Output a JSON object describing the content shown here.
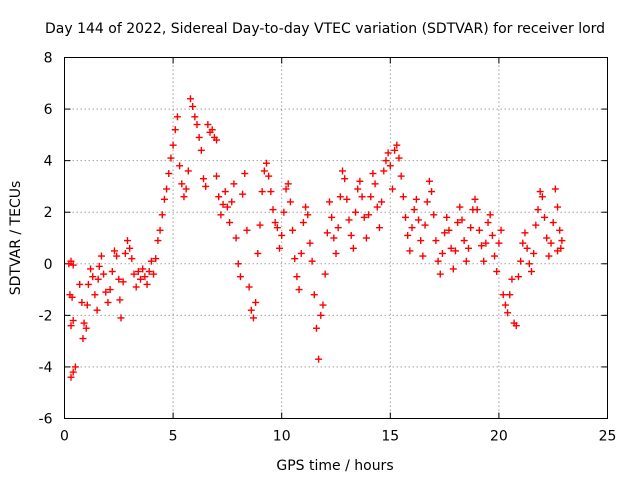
{
  "chart_data": {
    "type": "scatter",
    "title": "Day 144 of 2022, Sidereal Day-to-day VTEC variation (SDTVAR) for receiver lord",
    "xlabel": "GPS time / hours",
    "ylabel": "SDTVAR / TECUs",
    "xlim": [
      0,
      25
    ],
    "ylim": [
      -6,
      8
    ],
    "xticks": [
      0,
      5,
      10,
      15,
      20,
      25
    ],
    "yticks": [
      -6,
      -4,
      -2,
      0,
      2,
      4,
      6,
      8
    ],
    "grid": true,
    "marker": "+",
    "color": "#ff0000",
    "series": [
      {
        "name": "SDTVAR",
        "points": [
          [
            0.2,
            0.0
          ],
          [
            0.3,
            0.1
          ],
          [
            0.4,
            -0.05
          ],
          [
            0.25,
            -1.2
          ],
          [
            0.35,
            -1.3
          ],
          [
            0.3,
            -2.4
          ],
          [
            0.4,
            -2.2
          ],
          [
            0.3,
            -4.4
          ],
          [
            0.4,
            -4.2
          ],
          [
            0.5,
            -4.0
          ],
          [
            0.7,
            -0.8
          ],
          [
            0.8,
            -1.5
          ],
          [
            0.9,
            -2.3
          ],
          [
            0.85,
            -2.9
          ],
          [
            1.0,
            -2.5
          ],
          [
            1.05,
            -1.6
          ],
          [
            1.1,
            -0.8
          ],
          [
            1.2,
            -0.2
          ],
          [
            1.3,
            -0.5
          ],
          [
            1.4,
            -1.2
          ],
          [
            1.5,
            -1.8
          ],
          [
            1.55,
            -0.6
          ],
          [
            1.6,
            -0.1
          ],
          [
            1.7,
            0.3
          ],
          [
            1.8,
            -0.4
          ],
          [
            1.9,
            -1.1
          ],
          [
            2.0,
            -1.5
          ],
          [
            2.1,
            -1.0
          ],
          [
            2.2,
            -0.3
          ],
          [
            2.3,
            0.5
          ],
          [
            2.4,
            0.3
          ],
          [
            2.5,
            -0.6
          ],
          [
            2.55,
            -1.4
          ],
          [
            2.6,
            -2.1
          ],
          [
            2.7,
            -0.7
          ],
          [
            2.8,
            0.4
          ],
          [
            2.9,
            0.9
          ],
          [
            3.0,
            0.6
          ],
          [
            3.1,
            0.2
          ],
          [
            3.2,
            -0.4
          ],
          [
            3.3,
            -0.9
          ],
          [
            3.4,
            -0.3
          ],
          [
            3.5,
            -0.6
          ],
          [
            3.6,
            -0.2
          ],
          [
            3.7,
            -0.5
          ],
          [
            3.8,
            -0.8
          ],
          [
            3.9,
            -0.3
          ],
          [
            4.0,
            0.1
          ],
          [
            4.1,
            -0.4
          ],
          [
            4.2,
            0.2
          ],
          [
            4.3,
            0.9
          ],
          [
            4.4,
            1.3
          ],
          [
            4.5,
            1.9
          ],
          [
            4.6,
            2.5
          ],
          [
            4.7,
            2.9
          ],
          [
            4.8,
            3.5
          ],
          [
            4.9,
            4.1
          ],
          [
            5.0,
            4.6
          ],
          [
            5.1,
            5.2
          ],
          [
            5.2,
            5.7
          ],
          [
            5.3,
            3.8
          ],
          [
            5.4,
            3.1
          ],
          [
            5.5,
            2.6
          ],
          [
            5.6,
            2.9
          ],
          [
            5.7,
            3.6
          ],
          [
            5.8,
            6.4
          ],
          [
            5.9,
            6.1
          ],
          [
            6.0,
            5.7
          ],
          [
            6.1,
            5.4
          ],
          [
            6.2,
            4.9
          ],
          [
            6.3,
            4.4
          ],
          [
            6.4,
            3.3
          ],
          [
            6.5,
            3.0
          ],
          [
            6.6,
            5.4
          ],
          [
            6.7,
            5.1
          ],
          [
            6.8,
            5.2
          ],
          [
            6.9,
            4.9
          ],
          [
            7.0,
            4.8
          ],
          [
            7.0,
            3.4
          ],
          [
            7.1,
            2.6
          ],
          [
            7.2,
            1.9
          ],
          [
            7.3,
            2.3
          ],
          [
            7.4,
            2.8
          ],
          [
            7.5,
            2.2
          ],
          [
            7.6,
            1.6
          ],
          [
            7.7,
            2.4
          ],
          [
            7.8,
            3.1
          ],
          [
            7.9,
            1.0
          ],
          [
            8.0,
            0.0
          ],
          [
            8.1,
            -0.5
          ],
          [
            8.2,
            2.7
          ],
          [
            8.3,
            3.5
          ],
          [
            8.4,
            1.3
          ],
          [
            8.5,
            -0.9
          ],
          [
            8.6,
            -1.8
          ],
          [
            8.7,
            -2.1
          ],
          [
            8.8,
            -1.5
          ],
          [
            8.9,
            0.4
          ],
          [
            9.0,
            1.5
          ],
          [
            9.1,
            2.8
          ],
          [
            9.2,
            3.6
          ],
          [
            9.3,
            3.9
          ],
          [
            9.4,
            3.4
          ],
          [
            9.5,
            2.8
          ],
          [
            9.6,
            2.1
          ],
          [
            9.7,
            1.6
          ],
          [
            9.8,
            1.4
          ],
          [
            9.9,
            0.6
          ],
          [
            10.0,
            1.1
          ],
          [
            10.1,
            2.0
          ],
          [
            10.2,
            2.9
          ],
          [
            10.3,
            3.1
          ],
          [
            10.4,
            2.4
          ],
          [
            10.5,
            1.3
          ],
          [
            10.6,
            0.2
          ],
          [
            10.7,
            -0.5
          ],
          [
            10.8,
            -1.0
          ],
          [
            10.9,
            0.4
          ],
          [
            11.0,
            1.6
          ],
          [
            11.1,
            2.2
          ],
          [
            11.2,
            1.9
          ],
          [
            11.3,
            0.8
          ],
          [
            11.4,
            0.1
          ],
          [
            11.5,
            -1.2
          ],
          [
            11.6,
            -2.5
          ],
          [
            11.7,
            -3.7
          ],
          [
            11.8,
            -2.0
          ],
          [
            11.9,
            -1.6
          ],
          [
            12.0,
            -0.4
          ],
          [
            12.1,
            1.2
          ],
          [
            12.2,
            2.4
          ],
          [
            12.3,
            1.8
          ],
          [
            12.4,
            1.0
          ],
          [
            12.5,
            0.4
          ],
          [
            12.6,
            1.4
          ],
          [
            12.7,
            2.6
          ],
          [
            12.8,
            3.6
          ],
          [
            12.9,
            3.3
          ],
          [
            13.0,
            2.5
          ],
          [
            13.1,
            1.7
          ],
          [
            13.2,
            1.1
          ],
          [
            13.3,
            0.6
          ],
          [
            13.4,
            2.0
          ],
          [
            13.5,
            2.9
          ],
          [
            13.6,
            3.2
          ],
          [
            13.7,
            2.6
          ],
          [
            13.8,
            1.8
          ],
          [
            13.9,
            1.0
          ],
          [
            14.0,
            1.9
          ],
          [
            14.1,
            2.6
          ],
          [
            14.2,
            3.5
          ],
          [
            14.3,
            3.1
          ],
          [
            14.4,
            2.2
          ],
          [
            14.5,
            1.4
          ],
          [
            14.6,
            2.4
          ],
          [
            14.7,
            3.6
          ],
          [
            14.8,
            4.0
          ],
          [
            14.9,
            4.3
          ],
          [
            15.0,
            3.8
          ],
          [
            15.1,
            2.9
          ],
          [
            15.2,
            4.4
          ],
          [
            15.3,
            4.6
          ],
          [
            15.4,
            4.1
          ],
          [
            15.5,
            3.4
          ],
          [
            15.6,
            2.6
          ],
          [
            15.7,
            1.8
          ],
          [
            15.8,
            1.1
          ],
          [
            15.9,
            0.5
          ],
          [
            16.0,
            1.4
          ],
          [
            16.1,
            2.1
          ],
          [
            16.2,
            2.5
          ],
          [
            16.3,
            1.7
          ],
          [
            16.4,
            0.9
          ],
          [
            16.5,
            0.3
          ],
          [
            16.6,
            1.5
          ],
          [
            16.7,
            2.4
          ],
          [
            16.8,
            3.2
          ],
          [
            16.9,
            2.8
          ],
          [
            17.0,
            1.9
          ],
          [
            17.1,
            0.9
          ],
          [
            17.2,
            0.1
          ],
          [
            17.3,
            -0.4
          ],
          [
            17.4,
            0.4
          ],
          [
            17.5,
            1.2
          ],
          [
            17.6,
            1.8
          ],
          [
            17.7,
            1.3
          ],
          [
            17.8,
            0.6
          ],
          [
            17.9,
            -0.2
          ],
          [
            18.0,
            0.5
          ],
          [
            18.1,
            1.6
          ],
          [
            18.2,
            2.2
          ],
          [
            18.3,
            1.7
          ],
          [
            18.4,
            0.9
          ],
          [
            18.5,
            0.1
          ],
          [
            18.6,
            0.6
          ],
          [
            18.7,
            1.4
          ],
          [
            18.8,
            2.1
          ],
          [
            18.9,
            2.5
          ],
          [
            19.0,
            2.1
          ],
          [
            19.1,
            1.3
          ],
          [
            19.2,
            0.7
          ],
          [
            19.3,
            0.1
          ],
          [
            19.4,
            0.8
          ],
          [
            19.5,
            1.6
          ],
          [
            19.6,
            1.9
          ],
          [
            19.7,
            1.1
          ],
          [
            19.8,
            0.3
          ],
          [
            19.9,
            -0.3
          ],
          [
            20.0,
            0.8
          ],
          [
            20.1,
            1.3
          ],
          [
            20.2,
            -1.2
          ],
          [
            20.3,
            -1.6
          ],
          [
            20.4,
            -1.9
          ],
          [
            20.5,
            -1.2
          ],
          [
            20.6,
            -0.6
          ],
          [
            20.7,
            -2.3
          ],
          [
            20.8,
            -2.4
          ],
          [
            20.9,
            -0.5
          ],
          [
            21.0,
            0.1
          ],
          [
            21.1,
            0.8
          ],
          [
            21.2,
            1.2
          ],
          [
            21.3,
            0.6
          ],
          [
            21.4,
            0.0
          ],
          [
            21.5,
            -0.3
          ],
          [
            21.6,
            0.4
          ],
          [
            21.7,
            1.5
          ],
          [
            21.8,
            2.1
          ],
          [
            21.9,
            2.8
          ],
          [
            22.0,
            2.6
          ],
          [
            22.1,
            1.8
          ],
          [
            22.2,
            1.0
          ],
          [
            22.3,
            0.3
          ],
          [
            22.4,
            0.8
          ],
          [
            22.5,
            1.6
          ],
          [
            22.6,
            2.9
          ],
          [
            22.7,
            2.2
          ],
          [
            22.8,
            1.3
          ],
          [
            22.85,
            0.6
          ],
          [
            22.9,
            0.9
          ],
          [
            22.7,
            0.5
          ]
        ]
      }
    ]
  }
}
